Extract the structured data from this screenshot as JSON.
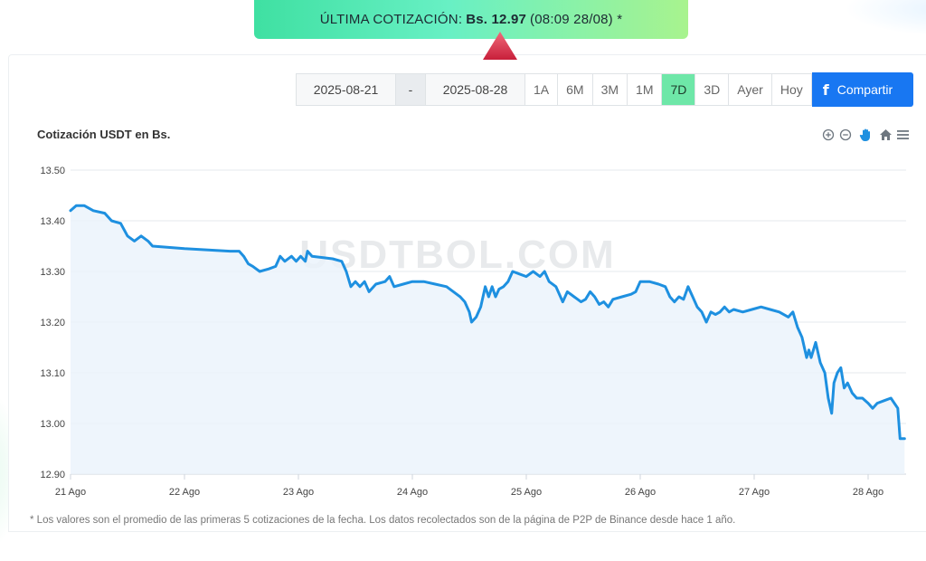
{
  "banner": {
    "label": "ÚLTIMA COTIZACIÓN:",
    "price": "Bs. 12.97",
    "time": "(08:09 28/08) *",
    "trend_icon": "triangle-up-icon",
    "trend_color": "#d9344a"
  },
  "toolbar": {
    "date_start": "2025-08-21",
    "date_separator": "-",
    "date_end": "2025-08-28",
    "ranges": [
      "1A",
      "6M",
      "3M",
      "1M",
      "7D",
      "3D",
      "Ayer",
      "Hoy"
    ],
    "active_range": "7D",
    "share_label": "Compartir",
    "share_icon": "facebook-icon"
  },
  "chart_tools": [
    "zoom-in-icon",
    "zoom-out-icon",
    "pan-hand-icon",
    "home-icon",
    "menu-icon"
  ],
  "watermark": "USDTBOL.COM",
  "footnote": "* Los valores son el promedio de las primeras 5 cotizaciones de la fecha. Los datos recolectados son de la página de P2P de Binance desde hace 1 año.",
  "chart_data": {
    "type": "area",
    "title": "Cotización USDT en Bs.",
    "xlabel": "",
    "ylabel": "",
    "x_unit": "days since 21 Ago",
    "ylim": [
      12.9,
      13.5
    ],
    "yticks": [
      "12.90",
      "13.00",
      "13.10",
      "13.20",
      "13.30",
      "13.40",
      "13.50"
    ],
    "xticks": [
      "21 Ago",
      "22 Ago",
      "23 Ago",
      "24 Ago",
      "25 Ago",
      "26 Ago",
      "27 Ago",
      "28 Ago"
    ],
    "grid": true,
    "legend": false,
    "line_color": "#1e90e0",
    "fill_color": "#eaf3fb",
    "series": [
      {
        "points": [
          [
            0.0,
            13.42
          ],
          [
            0.05,
            13.43
          ],
          [
            0.12,
            13.43
          ],
          [
            0.2,
            13.42
          ],
          [
            0.3,
            13.415
          ],
          [
            0.36,
            13.4
          ],
          [
            0.44,
            13.395
          ],
          [
            0.5,
            13.37
          ],
          [
            0.56,
            13.36
          ],
          [
            0.62,
            13.37
          ],
          [
            0.68,
            13.36
          ],
          [
            0.72,
            13.35
          ],
          [
            1.0,
            13.345
          ],
          [
            1.4,
            13.34
          ],
          [
            1.48,
            13.34
          ],
          [
            1.52,
            13.33
          ],
          [
            1.56,
            13.315
          ],
          [
            1.6,
            13.31
          ],
          [
            1.66,
            13.3
          ],
          [
            1.74,
            13.305
          ],
          [
            1.8,
            13.31
          ],
          [
            1.84,
            13.33
          ],
          [
            1.88,
            13.32
          ],
          [
            1.94,
            13.33
          ],
          [
            1.98,
            13.32
          ],
          [
            2.02,
            13.33
          ],
          [
            2.06,
            13.32
          ],
          [
            2.08,
            13.34
          ],
          [
            2.12,
            13.33
          ],
          [
            2.3,
            13.325
          ],
          [
            2.38,
            13.32
          ],
          [
            2.42,
            13.3
          ],
          [
            2.46,
            13.27
          ],
          [
            2.5,
            13.28
          ],
          [
            2.54,
            13.27
          ],
          [
            2.58,
            13.28
          ],
          [
            2.62,
            13.26
          ],
          [
            2.68,
            13.275
          ],
          [
            2.76,
            13.28
          ],
          [
            2.8,
            13.29
          ],
          [
            2.84,
            13.27
          ],
          [
            2.92,
            13.275
          ],
          [
            3.0,
            13.28
          ],
          [
            3.1,
            13.28
          ],
          [
            3.2,
            13.275
          ],
          [
            3.3,
            13.27
          ],
          [
            3.36,
            13.26
          ],
          [
            3.42,
            13.25
          ],
          [
            3.46,
            13.24
          ],
          [
            3.5,
            13.22
          ],
          [
            3.52,
            13.2
          ],
          [
            3.56,
            13.21
          ],
          [
            3.6,
            13.23
          ],
          [
            3.64,
            13.27
          ],
          [
            3.67,
            13.25
          ],
          [
            3.7,
            13.27
          ],
          [
            3.73,
            13.25
          ],
          [
            3.76,
            13.265
          ],
          [
            3.8,
            13.27
          ],
          [
            3.84,
            13.28
          ],
          [
            3.88,
            13.3
          ],
          [
            3.94,
            13.295
          ],
          [
            4.0,
            13.29
          ],
          [
            4.06,
            13.3
          ],
          [
            4.12,
            13.29
          ],
          [
            4.16,
            13.3
          ],
          [
            4.2,
            13.28
          ],
          [
            4.26,
            13.27
          ],
          [
            4.32,
            13.24
          ],
          [
            4.36,
            13.26
          ],
          [
            4.42,
            13.25
          ],
          [
            4.48,
            13.24
          ],
          [
            4.52,
            13.245
          ],
          [
            4.56,
            13.26
          ],
          [
            4.6,
            13.25
          ],
          [
            4.64,
            13.235
          ],
          [
            4.68,
            13.24
          ],
          [
            4.72,
            13.23
          ],
          [
            4.76,
            13.245
          ],
          [
            4.84,
            13.25
          ],
          [
            4.92,
            13.255
          ],
          [
            4.96,
            13.26
          ],
          [
            5.0,
            13.28
          ],
          [
            5.08,
            13.28
          ],
          [
            5.16,
            13.275
          ],
          [
            5.22,
            13.27
          ],
          [
            5.26,
            13.25
          ],
          [
            5.3,
            13.24
          ],
          [
            5.34,
            13.25
          ],
          [
            5.38,
            13.245
          ],
          [
            5.42,
            13.27
          ],
          [
            5.46,
            13.25
          ],
          [
            5.5,
            13.23
          ],
          [
            5.54,
            13.22
          ],
          [
            5.58,
            13.2
          ],
          [
            5.62,
            13.22
          ],
          [
            5.66,
            13.215
          ],
          [
            5.7,
            13.22
          ],
          [
            5.74,
            13.23
          ],
          [
            5.78,
            13.22
          ],
          [
            5.82,
            13.225
          ],
          [
            5.9,
            13.22
          ],
          [
            5.98,
            13.225
          ],
          [
            6.06,
            13.23
          ],
          [
            6.14,
            13.225
          ],
          [
            6.22,
            13.22
          ],
          [
            6.3,
            13.21
          ],
          [
            6.34,
            13.22
          ],
          [
            6.38,
            13.19
          ],
          [
            6.42,
            13.17
          ],
          [
            6.46,
            13.13
          ],
          [
            6.48,
            13.145
          ],
          [
            6.5,
            13.13
          ],
          [
            6.54,
            13.16
          ],
          [
            6.58,
            13.12
          ],
          [
            6.62,
            13.1
          ],
          [
            6.65,
            13.05
          ],
          [
            6.68,
            13.02
          ],
          [
            6.7,
            13.08
          ],
          [
            6.73,
            13.1
          ],
          [
            6.76,
            13.11
          ],
          [
            6.79,
            13.07
          ],
          [
            6.82,
            13.08
          ],
          [
            6.86,
            13.06
          ],
          [
            6.9,
            13.05
          ],
          [
            6.95,
            13.05
          ],
          [
            7.0,
            13.04
          ],
          [
            7.04,
            13.03
          ],
          [
            7.08,
            13.04
          ],
          [
            7.14,
            13.045
          ],
          [
            7.2,
            13.05
          ],
          [
            7.23,
            13.04
          ],
          [
            7.26,
            13.03
          ],
          [
            7.28,
            12.97
          ],
          [
            7.32,
            12.97
          ]
        ]
      }
    ]
  }
}
